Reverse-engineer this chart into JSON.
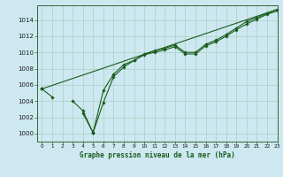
{
  "title": "Graphe pression niveau de la mer (hPa)",
  "bg_color": "#cde8f0",
  "grid_color": "#b0d4c8",
  "line_color": "#1a5c1a",
  "xlim": [
    -0.5,
    23
  ],
  "ylim": [
    999.0,
    1015.8
  ],
  "xticks": [
    0,
    1,
    2,
    3,
    4,
    5,
    6,
    7,
    8,
    9,
    10,
    11,
    12,
    13,
    14,
    15,
    16,
    17,
    18,
    19,
    20,
    21,
    22,
    23
  ],
  "ytick_labels": [
    "1000",
    "1002",
    "1004",
    "1006",
    "1008",
    "1010",
    "1012",
    "1014"
  ],
  "yticks": [
    1000,
    1002,
    1004,
    1006,
    1008,
    1010,
    1012,
    1014
  ],
  "series": [
    [
      1005.5,
      1004.5,
      null,
      null,
      1002.5,
      1000.1,
      1005.3,
      1007.3,
      1008.5,
      1009.0,
      1009.8,
      1010.2,
      1010.5,
      1010.9,
      1010.0,
      1010.0,
      1011.0,
      1011.5,
      1012.2,
      1013.0,
      1013.8,
      1014.3,
      1014.8,
      1015.3
    ],
    [
      1005.5,
      null,
      null,
      1004.0,
      1002.8,
      1000.1,
      1003.8,
      1007.0,
      1008.2,
      1009.0,
      1009.7,
      1010.0,
      1010.3,
      1010.7,
      1009.8,
      1009.8,
      1010.8,
      1011.3,
      1012.0,
      1012.8,
      1013.5,
      1014.1,
      1014.7,
      1015.1
    ],
    [
      1005.5,
      null,
      null,
      null,
      null,
      1000.1,
      null,
      null,
      null,
      null,
      null,
      null,
      null,
      null,
      null,
      null,
      null,
      null,
      null,
      null,
      null,
      null,
      null,
      1015.3
    ]
  ],
  "figsize": [
    3.2,
    2.0
  ],
  "dpi": 100
}
